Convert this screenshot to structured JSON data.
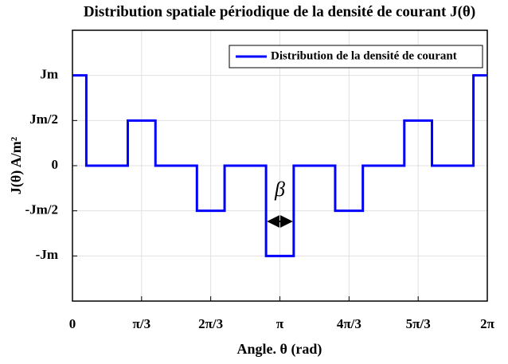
{
  "chart_data": {
    "type": "line",
    "title": "Distribution spatiale périodique de la densité de courant J(θ)",
    "xlabel": "Angle. θ (rad)",
    "ylabel": "J(θ) A/m²",
    "series": [
      {
        "name": "Distribution de la densité de courant",
        "color": "#0000ff",
        "x": [
          0,
          0.21,
          0.21,
          0.838,
          0.838,
          1.257,
          1.257,
          1.885,
          1.885,
          2.304,
          2.304,
          2.932,
          2.932,
          3.351,
          3.351,
          3.979,
          3.979,
          4.398,
          4.398,
          5.026,
          5.026,
          5.445,
          5.445,
          6.073,
          6.073,
          6.283
        ],
        "values": [
          1,
          1,
          0,
          0,
          0.5,
          0.5,
          0,
          0,
          -0.5,
          -0.5,
          0,
          0,
          -1,
          -1,
          0,
          0,
          -0.5,
          -0.5,
          0,
          0,
          0.5,
          0.5,
          0,
          0,
          1,
          1
        ]
      }
    ],
    "annotations": [
      {
        "text": "β"
      }
    ],
    "xlim": [
      0,
      6.283
    ],
    "xticks": [
      0,
      {
        "value": 1.047,
        "label": "π/3"
      },
      {
        "value": 2.094,
        "label": "2π/3"
      },
      {
        "value": 3.142,
        "label": "π"
      },
      {
        "value": 4.189,
        "label": "4π/3"
      },
      {
        "value": 5.236,
        "label": "5π/3"
      },
      {
        "value": 6.283,
        "label": "2π"
      }
    ],
    "ylim": [
      -1.5,
      1.5
    ],
    "yticks": [
      {
        "value": -1,
        "label": "-Jm"
      },
      {
        "value": -0.5,
        "label": "-Jm/2"
      },
      0,
      {
        "value": 0.5,
        "label": "Jm/2"
      },
      {
        "value": 1,
        "label": "Jm"
      }
    ],
    "grid": true,
    "legend": "upper right"
  }
}
